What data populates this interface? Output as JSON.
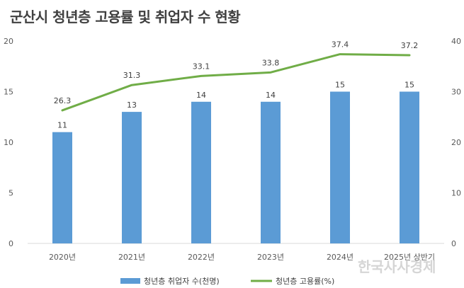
{
  "header": {
    "title": "군산시 청년층 고용률 및 취업자 수 현황"
  },
  "watermark": {
    "text": "한국사사경제"
  },
  "chart_data": {
    "type": "bar",
    "title": "군산시 청년층 고용률 및 취업자 수 현황",
    "categories": [
      "2020년",
      "2021년",
      "2022년",
      "2023년",
      "2024년",
      "2025년 상반기"
    ],
    "series": [
      {
        "name": "청년층 취업자 수(천명)",
        "type": "bar",
        "axis": "left",
        "values": [
          11,
          13,
          14,
          14,
          15,
          15
        ],
        "labels": [
          "11",
          "13",
          "14",
          "14",
          "15",
          "15"
        ],
        "color": "#5b9bd5"
      },
      {
        "name": "청년층 고용률(%)",
        "type": "line",
        "axis": "right",
        "values": [
          26.3,
          31.3,
          33.1,
          33.8,
          37.4,
          37.2
        ],
        "labels": [
          "26.3",
          "31.3",
          "33.1",
          "33.8",
          "37.4",
          "37.2"
        ],
        "color": "#70ad47"
      }
    ],
    "y_left": {
      "min": 0,
      "max": 20,
      "ticks": [
        "0",
        "5",
        "10",
        "15",
        "20"
      ]
    },
    "y_right": {
      "min": 0,
      "max": 40,
      "ticks": [
        "0",
        "10",
        "20",
        "30",
        "40"
      ]
    },
    "grid": false,
    "legend": "bottom"
  }
}
